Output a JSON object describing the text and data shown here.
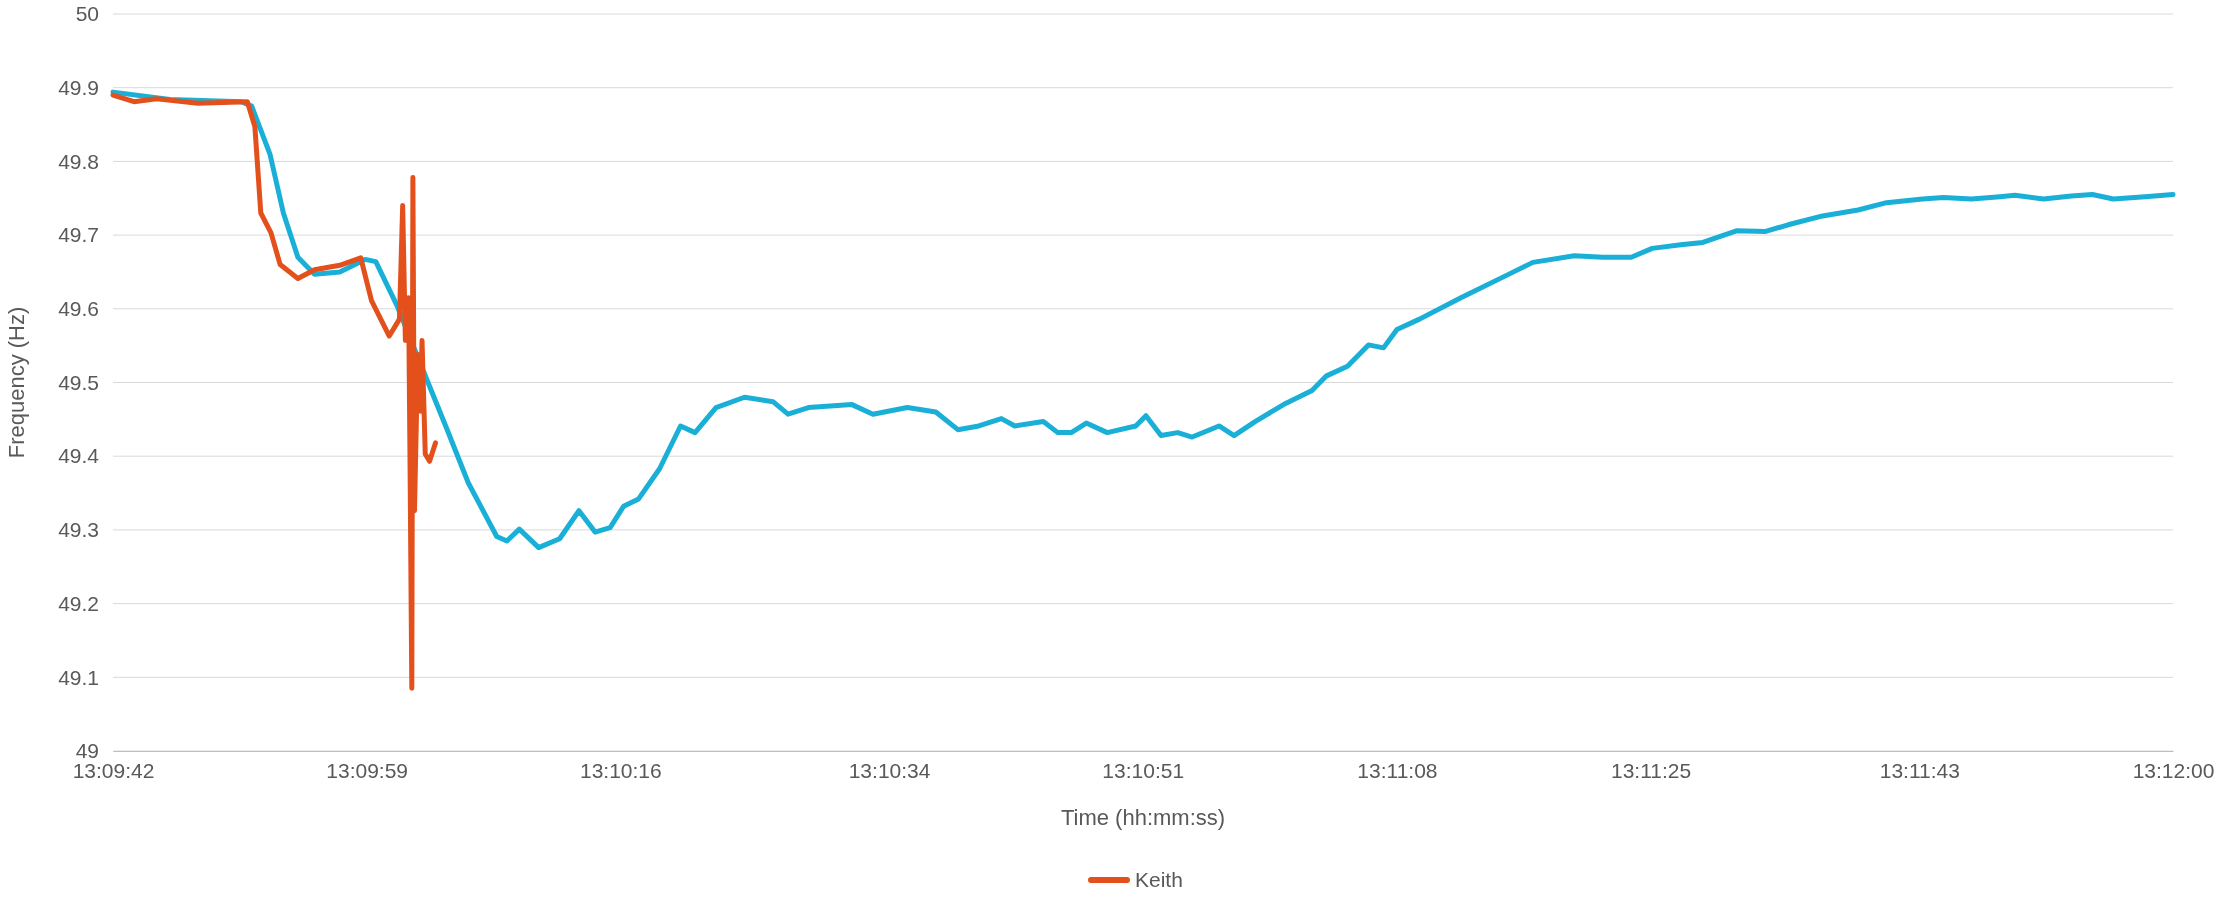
{
  "chart_data": {
    "type": "line",
    "xlabel": "Time (hh:mm:ss)",
    "ylabel": "Frequency (Hz)",
    "xlim": [
      13.16167,
      13.2
    ],
    "xticks": [
      {
        "value": 13.16167,
        "label": "13:09:42"
      },
      {
        "value": 13.16639,
        "label": "13:09:59"
      },
      {
        "value": 13.17111,
        "label": "13:10:16"
      },
      {
        "value": 13.17611,
        "label": "13:10:34"
      },
      {
        "value": 13.18083,
        "label": "13:10:51"
      },
      {
        "value": 13.18556,
        "label": "13:11:08"
      },
      {
        "value": 13.19028,
        "label": "13:11:25"
      },
      {
        "value": 13.19528,
        "label": "13:11:43"
      },
      {
        "value": 13.2,
        "label": "13:12:00"
      }
    ],
    "ylim": [
      49,
      50
    ],
    "yticks": [
      49,
      49.1,
      49.2,
      49.3,
      49.4,
      49.5,
      49.6,
      49.7,
      49.8,
      49.9,
      50
    ],
    "grid": "y",
    "legend": "bottom",
    "marker": "none",
    "line_style": "solid",
    "series": [
      {
        "color": "#1aafd6",
        "x": [
          13.16167,
          13.16273,
          13.16406,
          13.16425,
          13.16459,
          13.16484,
          13.16511,
          13.16542,
          13.16589,
          13.16636,
          13.16656,
          13.16695,
          13.16742,
          13.16786,
          13.16828,
          13.16881,
          13.169,
          13.16923,
          13.16959,
          13.16998,
          13.17034,
          13.17064,
          13.17092,
          13.17117,
          13.17145,
          13.17184,
          13.17223,
          13.1725,
          13.17289,
          13.17342,
          13.17395,
          13.17423,
          13.17461,
          13.17542,
          13.17581,
          13.17645,
          13.17698,
          13.17739,
          13.17778,
          13.1782,
          13.17845,
          13.17898,
          13.17925,
          13.1795,
          13.17978,
          13.18017,
          13.1807,
          13.18089,
          13.18117,
          13.18148,
          13.18175,
          13.18225,
          13.18253,
          13.18292,
          13.18345,
          13.18398,
          13.18425,
          13.18464,
          13.18503,
          13.18531,
          13.18556,
          13.18598,
          13.18675,
          13.18756,
          13.18809,
          13.18886,
          13.18939,
          13.18992,
          13.19031,
          13.19084,
          13.19125,
          13.19189,
          13.19242,
          13.19284,
          13.19348,
          13.19414,
          13.19467,
          13.19534,
          13.19573,
          13.19625,
          13.19678,
          13.19706,
          13.19759,
          13.19811,
          13.1985,
          13.19889,
          13.19948,
          13.2
        ],
        "values": [
          49.894,
          49.884,
          49.881,
          49.875,
          49.81,
          49.73,
          49.67,
          49.647,
          49.65,
          49.667,
          49.664,
          49.605,
          49.52,
          49.441,
          49.364,
          49.291,
          49.285,
          49.301,
          49.276,
          49.288,
          49.326,
          49.297,
          49.303,
          49.332,
          49.342,
          49.383,
          49.441,
          49.432,
          49.466,
          49.48,
          49.474,
          49.457,
          49.466,
          49.47,
          49.457,
          49.466,
          49.46,
          49.436,
          49.441,
          49.451,
          49.441,
          49.447,
          49.432,
          49.432,
          49.445,
          49.432,
          49.441,
          49.455,
          49.428,
          49.432,
          49.426,
          49.441,
          49.428,
          49.447,
          49.47,
          49.489,
          49.509,
          49.522,
          49.551,
          49.547,
          49.572,
          49.586,
          49.615,
          49.644,
          49.663,
          49.672,
          49.67,
          49.67,
          49.682,
          49.687,
          49.69,
          49.706,
          49.705,
          49.714,
          49.726,
          49.734,
          49.744,
          49.749,
          49.751,
          49.749,
          49.752,
          49.754,
          49.749,
          49.753,
          49.755,
          49.749,
          49.752,
          49.755
        ]
      },
      {
        "name": "Keith",
        "color": "#e4501c",
        "x": [
          13.16167,
          13.16206,
          13.16248,
          13.16325,
          13.16417,
          13.16431,
          13.16442,
          13.16461,
          13.16478,
          13.16511,
          13.16542,
          13.16589,
          13.16628,
          13.16648,
          13.16681,
          13.167,
          13.16706,
          13.16711,
          13.16717,
          13.1672,
          13.16723,
          13.16725,
          13.16728,
          13.16734,
          13.16739,
          13.16742,
          13.16748,
          13.16756,
          13.16767
        ],
        "values": [
          49.89,
          49.881,
          49.885,
          49.879,
          49.881,
          49.847,
          49.73,
          49.703,
          49.66,
          49.641,
          49.653,
          49.659,
          49.669,
          49.611,
          49.563,
          49.586,
          49.74,
          49.557,
          49.615,
          49.364,
          49.085,
          49.778,
          49.326,
          49.538,
          49.461,
          49.557,
          49.403,
          49.393,
          49.418
        ]
      }
    ]
  }
}
